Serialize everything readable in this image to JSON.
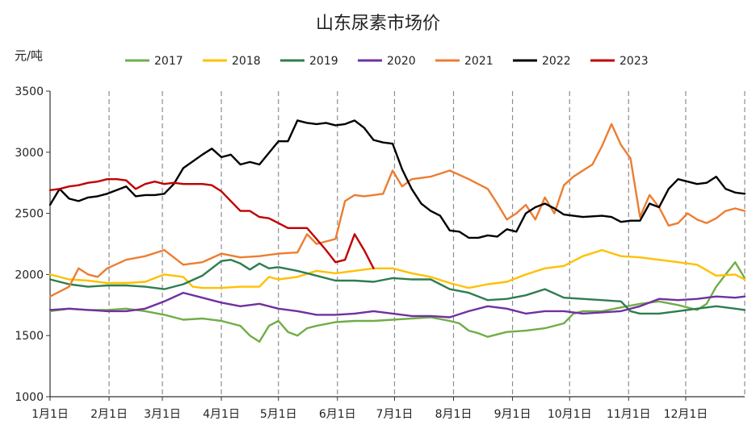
{
  "chart_data": {
    "type": "line",
    "title": "山东尿素市场价",
    "ylabel": "元/吨",
    "ylim": [
      1000,
      3500
    ],
    "yticks": [
      1000,
      1500,
      2000,
      2500,
      3000,
      3500
    ],
    "xlim": [
      0,
      365
    ],
    "xticks": [
      {
        "label": "1月1日",
        "x": 0
      },
      {
        "label": "2月1日",
        "x": 31
      },
      {
        "label": "3月1日",
        "x": 59
      },
      {
        "label": "4月1日",
        "x": 90
      },
      {
        "label": "5月1日",
        "x": 120
      },
      {
        "label": "6月1日",
        "x": 151
      },
      {
        "label": "7月1日",
        "x": 181
      },
      {
        "label": "8月1日",
        "x": 212
      },
      {
        "label": "9月1日",
        "x": 243
      },
      {
        "label": "10月1日",
        "x": 273
      },
      {
        "label": "11月1日",
        "x": 304
      },
      {
        "label": "12月1日",
        "x": 334
      }
    ],
    "legend_position": "top",
    "grid": "vertical-dashed",
    "series": [
      {
        "name": "2017",
        "color": "#70ad47",
        "x": [
          0,
          10,
          20,
          30,
          40,
          50,
          60,
          70,
          80,
          90,
          100,
          105,
          110,
          115,
          120,
          125,
          130,
          135,
          140,
          150,
          160,
          170,
          180,
          190,
          200,
          210,
          215,
          220,
          225,
          230,
          240,
          250,
          260,
          270,
          275,
          280,
          290,
          300,
          310,
          320,
          330,
          340,
          345,
          350,
          355,
          360,
          365
        ],
        "y": [
          1700,
          1720,
          1710,
          1710,
          1720,
          1700,
          1670,
          1630,
          1640,
          1620,
          1580,
          1500,
          1450,
          1580,
          1620,
          1530,
          1500,
          1560,
          1580,
          1610,
          1620,
          1620,
          1630,
          1640,
          1650,
          1620,
          1600,
          1540,
          1520,
          1490,
          1530,
          1540,
          1560,
          1600,
          1680,
          1700,
          1700,
          1730,
          1760,
          1780,
          1750,
          1710,
          1760,
          1900,
          2000,
          2100,
          1970
        ]
      },
      {
        "name": "2018",
        "color": "#ffc000",
        "x": [
          0,
          10,
          20,
          30,
          40,
          50,
          60,
          70,
          75,
          80,
          90,
          100,
          110,
          115,
          120,
          130,
          140,
          150,
          160,
          170,
          180,
          190,
          200,
          210,
          220,
          230,
          240,
          250,
          260,
          270,
          280,
          290,
          300,
          310,
          320,
          330,
          340,
          350,
          360,
          365
        ],
        "y": [
          2000,
          1960,
          1950,
          1930,
          1930,
          1940,
          2000,
          1980,
          1900,
          1890,
          1890,
          1900,
          1900,
          1980,
          1960,
          1980,
          2030,
          2010,
          2030,
          2050,
          2050,
          2010,
          1980,
          1930,
          1890,
          1920,
          1940,
          2000,
          2050,
          2070,
          2150,
          2200,
          2150,
          2140,
          2120,
          2100,
          2080,
          1990,
          2000,
          1960
        ]
      },
      {
        "name": "2019",
        "color": "#2e7d4f",
        "x": [
          0,
          10,
          20,
          30,
          40,
          50,
          60,
          70,
          80,
          90,
          95,
          100,
          105,
          110,
          115,
          120,
          130,
          140,
          150,
          160,
          170,
          180,
          190,
          200,
          210,
          220,
          230,
          240,
          250,
          260,
          270,
          280,
          290,
          300,
          305,
          310,
          320,
          330,
          340,
          350,
          360,
          365
        ],
        "y": [
          1960,
          1920,
          1900,
          1910,
          1910,
          1900,
          1880,
          1920,
          1990,
          2110,
          2120,
          2090,
          2040,
          2090,
          2050,
          2060,
          2030,
          1990,
          1950,
          1950,
          1940,
          1970,
          1960,
          1960,
          1880,
          1850,
          1790,
          1800,
          1830,
          1880,
          1810,
          1800,
          1790,
          1780,
          1700,
          1680,
          1680,
          1700,
          1720,
          1740,
          1720,
          1710
        ]
      },
      {
        "name": "2020",
        "color": "#7030a0",
        "x": [
          0,
          10,
          20,
          30,
          40,
          50,
          60,
          70,
          80,
          90,
          100,
          110,
          120,
          130,
          140,
          150,
          160,
          170,
          180,
          190,
          200,
          210,
          220,
          230,
          240,
          250,
          260,
          270,
          280,
          290,
          300,
          310,
          320,
          330,
          340,
          350,
          360,
          365
        ],
        "y": [
          1710,
          1720,
          1710,
          1700,
          1700,
          1720,
          1780,
          1850,
          1810,
          1770,
          1740,
          1760,
          1720,
          1700,
          1670,
          1670,
          1680,
          1700,
          1680,
          1660,
          1660,
          1650,
          1700,
          1740,
          1720,
          1680,
          1700,
          1700,
          1680,
          1690,
          1700,
          1740,
          1800,
          1790,
          1800,
          1820,
          1810,
          1820
        ]
      },
      {
        "name": "2021",
        "color": "#ed7d31",
        "x": [
          0,
          10,
          15,
          20,
          25,
          30,
          40,
          50,
          60,
          70,
          80,
          90,
          100,
          110,
          120,
          130,
          135,
          140,
          150,
          155,
          160,
          165,
          170,
          175,
          180,
          185,
          190,
          200,
          210,
          220,
          230,
          235,
          240,
          245,
          250,
          255,
          260,
          265,
          270,
          275,
          280,
          285,
          290,
          295,
          300,
          305,
          310,
          315,
          320,
          325,
          330,
          335,
          340,
          345,
          350,
          355,
          360,
          365
        ],
        "y": [
          1820,
          1900,
          2050,
          2000,
          1980,
          2050,
          2120,
          2150,
          2200,
          2080,
          2100,
          2170,
          2140,
          2150,
          2170,
          2180,
          2330,
          2250,
          2290,
          2600,
          2650,
          2640,
          2650,
          2660,
          2850,
          2720,
          2780,
          2800,
          2850,
          2780,
          2700,
          2580,
          2450,
          2500,
          2570,
          2450,
          2630,
          2500,
          2730,
          2800,
          2850,
          2900,
          3050,
          3230,
          3060,
          2950,
          2470,
          2650,
          2550,
          2400,
          2420,
          2500,
          2450,
          2420,
          2460,
          2520,
          2540,
          2520
        ]
      },
      {
        "name": "2022",
        "color": "#000000",
        "x": [
          0,
          5,
          10,
          15,
          20,
          25,
          30,
          40,
          45,
          50,
          55,
          60,
          65,
          70,
          80,
          85,
          90,
          95,
          100,
          105,
          110,
          120,
          125,
          130,
          135,
          140,
          145,
          150,
          155,
          160,
          165,
          170,
          175,
          180,
          185,
          190,
          195,
          200,
          205,
          210,
          215,
          220,
          225,
          230,
          235,
          240,
          245,
          250,
          255,
          260,
          265,
          270,
          280,
          290,
          295,
          300,
          305,
          310,
          315,
          320,
          325,
          330,
          335,
          340,
          345,
          350,
          355,
          360,
          365
        ],
        "y": [
          2570,
          2700,
          2620,
          2600,
          2630,
          2640,
          2660,
          2720,
          2640,
          2650,
          2650,
          2660,
          2740,
          2870,
          2980,
          3030,
          2960,
          2980,
          2900,
          2920,
          2900,
          3090,
          3090,
          3260,
          3240,
          3230,
          3240,
          3220,
          3230,
          3260,
          3200,
          3100,
          3080,
          3070,
          2860,
          2700,
          2580,
          2520,
          2480,
          2360,
          2350,
          2300,
          2300,
          2320,
          2310,
          2370,
          2350,
          2500,
          2550,
          2580,
          2540,
          2490,
          2470,
          2480,
          2470,
          2430,
          2440,
          2440,
          2580,
          2550,
          2700,
          2780,
          2760,
          2740,
          2750,
          2800,
          2700,
          2670,
          2660
        ]
      },
      {
        "name": "2023",
        "color": "#c00000",
        "x": [
          0,
          5,
          10,
          15,
          20,
          25,
          30,
          35,
          40,
          45,
          50,
          55,
          60,
          65,
          70,
          75,
          80,
          85,
          90,
          95,
          100,
          105,
          110,
          115,
          120,
          125,
          130,
          135,
          140,
          145,
          150,
          155,
          160,
          165,
          170
        ],
        "y": [
          2690,
          2700,
          2720,
          2730,
          2750,
          2760,
          2780,
          2780,
          2770,
          2700,
          2740,
          2760,
          2740,
          2750,
          2740,
          2740,
          2740,
          2730,
          2680,
          2600,
          2520,
          2520,
          2470,
          2460,
          2420,
          2380,
          2380,
          2380,
          2290,
          2200,
          2100,
          2120,
          2330,
          2200,
          2050
        ]
      }
    ]
  }
}
